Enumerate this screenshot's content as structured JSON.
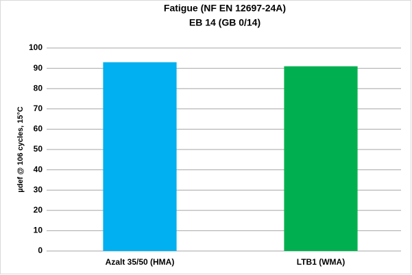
{
  "chart_data": {
    "type": "bar",
    "title": "Fatigue  (NF EN 12697-24A)",
    "subtitle": "EB 14 (GB 0/14)",
    "y_label": "µdef @ 106 cycles, 15°C",
    "categories": [
      "Azalt 35/50 (HMA)",
      "LTB1 (WMA)"
    ],
    "values": [
      93,
      91
    ],
    "colors": [
      "#00b0f0",
      "#00b050"
    ],
    "ylim": [
      0,
      100
    ],
    "yticks": [
      0,
      10,
      20,
      30,
      40,
      50,
      60,
      70,
      80,
      90,
      100
    ],
    "grid": true
  }
}
